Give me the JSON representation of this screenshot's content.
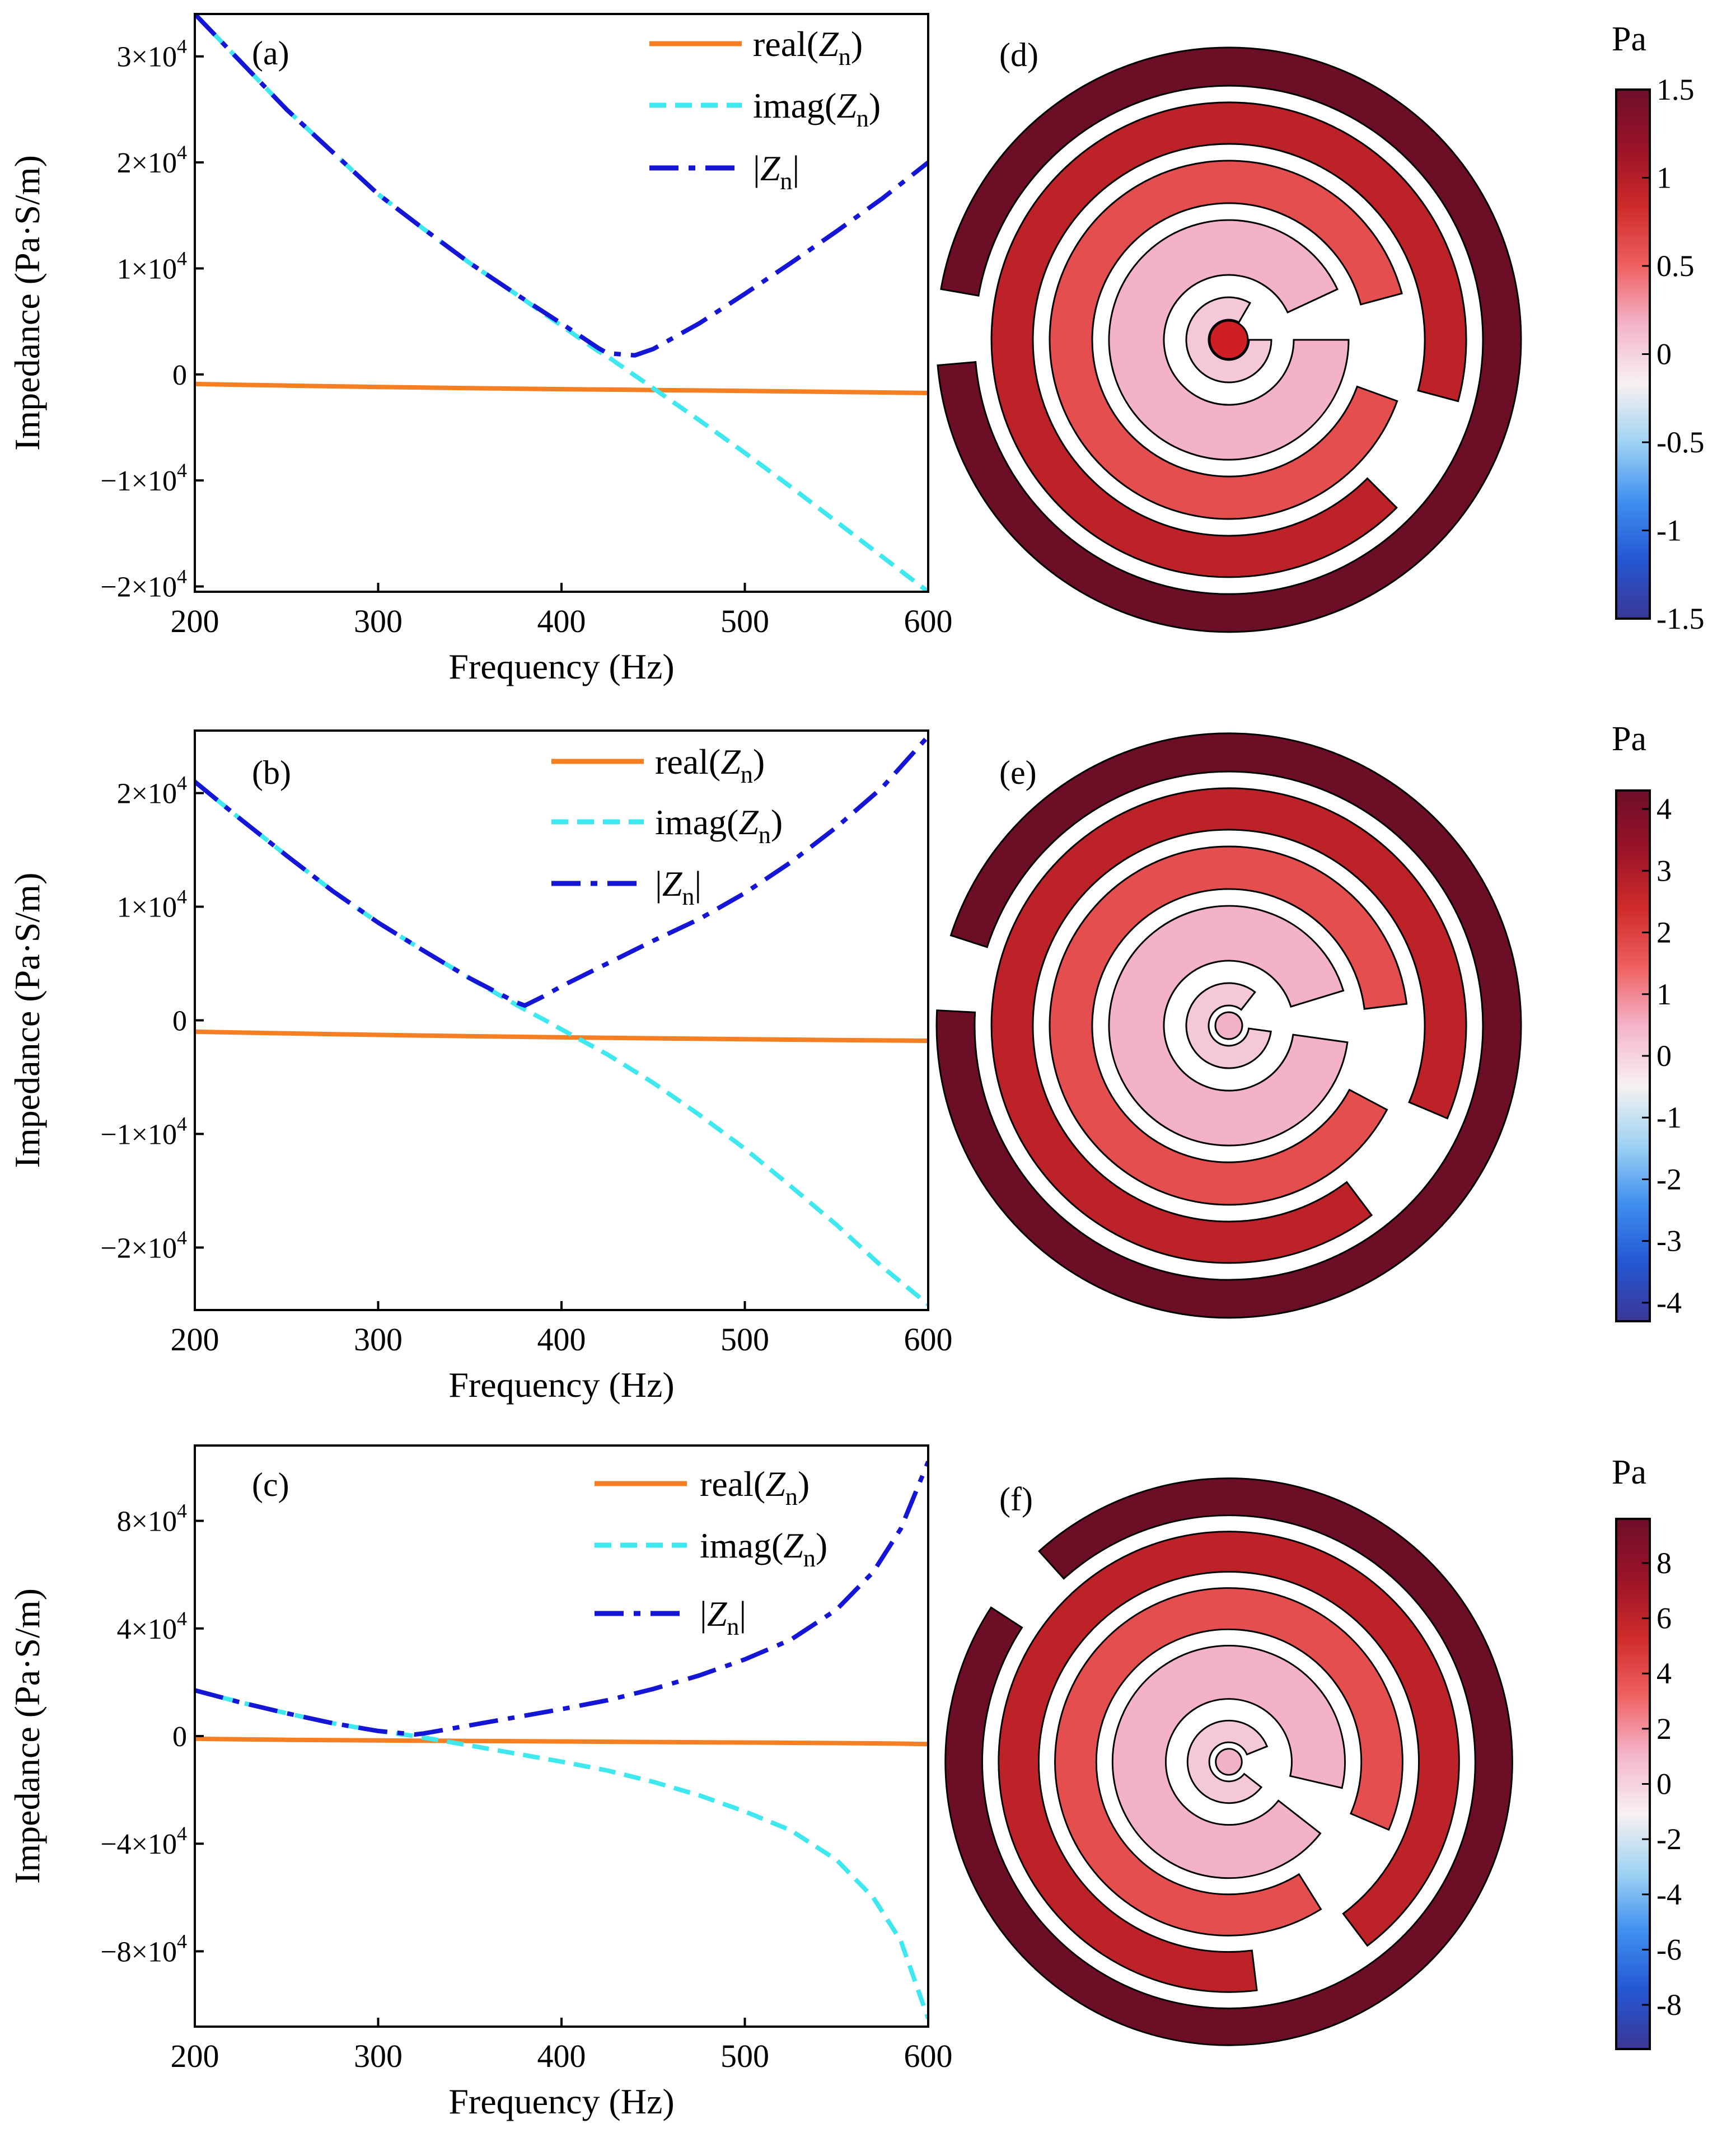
{
  "colors": {
    "real": "#f57f22",
    "imag": "#3ee8ee",
    "abs": "#1515d6",
    "colormap": [
      "#3b3796",
      "#2457d3",
      "#3f8ff0",
      "#9fd3f2",
      "#f8f1f1",
      "#f4b4cb",
      "#ef6060",
      "#cf2b2a",
      "#9a1328",
      "#6e0e2a"
    ]
  },
  "chart_data": [
    {
      "id": "a",
      "type": "line",
      "panel_label": "(a)",
      "xlabel": "Frequency (Hz)",
      "ylabel": "Impedance (Pa·S/m)",
      "xlim": [
        200,
        600
      ],
      "ylim": [
        -20500,
        34000
      ],
      "x_ticks": [
        200,
        300,
        400,
        500,
        600
      ],
      "x_tick_labels": [
        "200",
        "300",
        "400",
        "500",
        "600"
      ],
      "y_ticks": [
        -20000,
        -10000,
        0,
        10000,
        20000,
        30000
      ],
      "y_tick_labels": [
        {
          "mant": "−2×10",
          "exp": "4"
        },
        {
          "mant": "−1×10",
          "exp": "4"
        },
        {
          "mant": "0",
          "exp": ""
        },
        {
          "mant": "1×10",
          "exp": "4"
        },
        {
          "mant": "2×10",
          "exp": "4"
        },
        {
          "mant": "3×10",
          "exp": "4"
        }
      ],
      "x": [
        200,
        225,
        250,
        275,
        300,
        325,
        350,
        375,
        400,
        420,
        425,
        440,
        450,
        475,
        500,
        525,
        550,
        575,
        600
      ],
      "series": [
        {
          "name": "real(Zn)",
          "label_base": "real(",
          "label_var": "Z",
          "label_sub": "n",
          "label_end": ")",
          "style": "solid",
          "color_key": "real",
          "values": [
            -900,
            -980,
            -1050,
            -1120,
            -1180,
            -1240,
            -1290,
            -1340,
            -1390,
            -1420,
            -1430,
            -1450,
            -1470,
            -1510,
            -1550,
            -1600,
            -1650,
            -1700,
            -1750
          ]
        },
        {
          "name": "imag(Zn)",
          "label_base": "imag(",
          "label_var": "Z",
          "label_sub": "n",
          "label_end": ")",
          "style": "dashed",
          "color_key": "imag",
          "values": [
            34000,
            29500,
            25000,
            21000,
            17000,
            13700,
            10500,
            7600,
            4600,
            2200,
            1700,
            -100,
            -1300,
            -4300,
            -7400,
            -10600,
            -13900,
            -17200,
            -20500
          ]
        },
        {
          "name": "|Zn|",
          "label_base": "|",
          "label_var": "Z",
          "label_sub": "n",
          "label_end": "|",
          "style": "dashdot",
          "color_key": "abs",
          "values": [
            34000,
            29500,
            25000,
            21000,
            17000,
            13700,
            10500,
            7600,
            4800,
            2500,
            2000,
            1800,
            2400,
            4800,
            7600,
            10500,
            13500,
            16600,
            20000
          ]
        }
      ],
      "legend": "top-right"
    },
    {
      "id": "b",
      "type": "line",
      "panel_label": "(b)",
      "xlabel": "Frequency (Hz)",
      "ylabel": "Impedance (Pa·S/m)",
      "xlim": [
        200,
        600
      ],
      "ylim": [
        -25500,
        25500
      ],
      "x_ticks": [
        200,
        300,
        400,
        500,
        600
      ],
      "x_tick_labels": [
        "200",
        "300",
        "400",
        "500",
        "600"
      ],
      "y_ticks": [
        -20000,
        -10000,
        0,
        10000,
        20000
      ],
      "y_tick_labels": [
        {
          "mant": "−2×10",
          "exp": "4"
        },
        {
          "mant": "−1×10",
          "exp": "4"
        },
        {
          "mant": "0",
          "exp": ""
        },
        {
          "mant": "1×10",
          "exp": "4"
        },
        {
          "mant": "2×10",
          "exp": "4"
        }
      ],
      "x": [
        200,
        225,
        250,
        275,
        300,
        325,
        350,
        375,
        380,
        390,
        400,
        425,
        450,
        475,
        500,
        525,
        550,
        575,
        600
      ],
      "series": [
        {
          "name": "real(Zn)",
          "label_base": "real(",
          "label_var": "Z",
          "label_sub": "n",
          "label_end": ")",
          "style": "solid",
          "color_key": "real",
          "values": [
            -1000,
            -1080,
            -1150,
            -1220,
            -1280,
            -1340,
            -1400,
            -1450,
            -1460,
            -1480,
            -1500,
            -1540,
            -1580,
            -1620,
            -1660,
            -1700,
            -1740,
            -1770,
            -1800
          ]
        },
        {
          "name": "imag(Zn)",
          "label_base": "imag(",
          "label_var": "Z",
          "label_sub": "n",
          "label_end": ")",
          "style": "dashed",
          "color_key": "imag",
          "values": [
            21000,
            17700,
            14500,
            11400,
            8600,
            6100,
            3700,
            1400,
            950,
            100,
            -800,
            -3000,
            -5500,
            -8300,
            -11300,
            -14600,
            -18000,
            -21700,
            -25000
          ]
        },
        {
          "name": "|Zn|",
          "label_base": "|",
          "label_var": "Z",
          "label_sub": "n",
          "label_end": "|",
          "style": "dashdot",
          "color_key": "abs",
          "values": [
            21000,
            17700,
            14500,
            11400,
            8600,
            6100,
            3700,
            1600,
            1300,
            2100,
            3000,
            5000,
            7000,
            8900,
            11200,
            13900,
            17000,
            20500,
            25000
          ]
        }
      ],
      "legend": "top-right"
    },
    {
      "id": "c",
      "type": "line",
      "panel_label": "(c)",
      "xlabel": "Frequency (Hz)",
      "ylabel": "Impedance (Pa·S/m)",
      "xlim": [
        200,
        600
      ],
      "ylim": [
        -108000,
        108000
      ],
      "x_ticks": [
        200,
        300,
        400,
        500,
        600
      ],
      "x_tick_labels": [
        "200",
        "300",
        "400",
        "500",
        "600"
      ],
      "y_ticks": [
        -80000,
        -40000,
        0,
        40000,
        80000
      ],
      "y_tick_labels": [
        {
          "mant": "−8×10",
          "exp": "4"
        },
        {
          "mant": "−4×10",
          "exp": "4"
        },
        {
          "mant": "0",
          "exp": ""
        },
        {
          "mant": "4×10",
          "exp": "4"
        },
        {
          "mant": "8×10",
          "exp": "4"
        }
      ],
      "x": [
        200,
        225,
        250,
        275,
        300,
        320,
        325,
        350,
        375,
        400,
        425,
        450,
        475,
        500,
        525,
        550,
        570,
        585,
        600
      ],
      "series": [
        {
          "name": "real(Zn)",
          "label_base": "real(",
          "label_var": "Z",
          "label_sub": "n",
          "label_end": ")",
          "style": "solid",
          "color_key": "real",
          "values": [
            -1000,
            -1200,
            -1400,
            -1500,
            -1600,
            -1700,
            -1700,
            -1800,
            -1900,
            -2000,
            -2100,
            -2200,
            -2300,
            -2400,
            -2500,
            -2600,
            -2700,
            -2800,
            -3000
          ]
        },
        {
          "name": "imag(Zn)",
          "label_base": "imag(",
          "label_var": "Z",
          "label_sub": "n",
          "label_end": ")",
          "style": "dashed",
          "color_key": "imag",
          "values": [
            17000,
            12500,
            8500,
            4800,
            1900,
            0,
            -600,
            -3500,
            -6500,
            -9500,
            -12800,
            -17000,
            -22000,
            -28000,
            -35000,
            -46000,
            -60000,
            -76000,
            -105000
          ]
        },
        {
          "name": "|Zn|",
          "label_base": "|",
          "label_var": "Z",
          "label_sub": "n",
          "label_end": "|",
          "style": "dashdot",
          "color_key": "abs",
          "values": [
            17000,
            12500,
            8500,
            4800,
            1900,
            600,
            1000,
            4000,
            7000,
            10000,
            13300,
            17500,
            22500,
            28500,
            35800,
            47000,
            61000,
            77000,
            102000
          ]
        }
      ],
      "legend": "top-right"
    }
  ],
  "field_panels": [
    {
      "id": "d",
      "panel_label": "(d)",
      "unit": "Pa",
      "range": [
        -1.5,
        1.5
      ],
      "ticks": [
        "1.5",
        "1",
        "0.5",
        "0",
        "-0.5",
        "-1",
        "-1.5"
      ],
      "tick_values": [
        1.5,
        1,
        0.5,
        0,
        -0.5,
        -1,
        -1.5
      ]
    },
    {
      "id": "e",
      "panel_label": "(e)",
      "unit": "Pa",
      "range": [
        -4.3,
        4.3
      ],
      "ticks": [
        "4",
        "3",
        "2",
        "1",
        "0",
        "-1",
        "-2",
        "-3",
        "-4"
      ],
      "tick_values": [
        4,
        3,
        2,
        1,
        0,
        -1,
        -2,
        -3,
        -4
      ]
    },
    {
      "id": "f",
      "panel_label": "(f)",
      "unit": "Pa",
      "range": [
        -9.6,
        9.6
      ],
      "ticks": [
        "8",
        "6",
        "4",
        "2",
        "0",
        "-2",
        "-4",
        "-6",
        "-8"
      ],
      "tick_values": [
        8,
        6,
        4,
        2,
        0,
        -2,
        -4,
        -6,
        -8
      ]
    }
  ]
}
